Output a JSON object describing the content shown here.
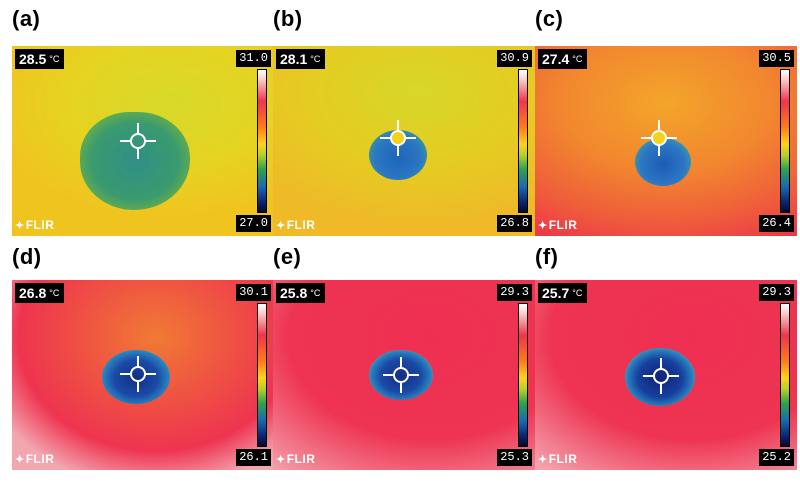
{
  "panels": [
    {
      "label": "(a)",
      "reading": "28.5",
      "unit": "°C",
      "scale_max": "31.0",
      "scale_min": "27.0",
      "logo": "FLIR"
    },
    {
      "label": "(b)",
      "reading": "28.1",
      "unit": "°C",
      "scale_max": "30.9",
      "scale_min": "26.8",
      "logo": "FLIR"
    },
    {
      "label": "(c)",
      "reading": "27.4",
      "unit": "°C",
      "scale_max": "30.5",
      "scale_min": "26.4",
      "logo": "FLIR"
    },
    {
      "label": "(d)",
      "reading": "26.8",
      "unit": "°C",
      "scale_max": "30.1",
      "scale_min": "26.1",
      "logo": "FLIR"
    },
    {
      "label": "(e)",
      "reading": "25.8",
      "unit": "°C",
      "scale_max": "29.3",
      "scale_min": "25.3",
      "logo": "FLIR"
    },
    {
      "label": "(f)",
      "reading": "25.7",
      "unit": "°C",
      "scale_max": "29.3",
      "scale_min": "25.2",
      "logo": "FLIR"
    }
  ],
  "colors": {
    "thermal_yellow": "#e8d021",
    "thermal_orange": "#f29a2a",
    "thermal_red": "#ef2a4f",
    "cold_blue": "#1c5fb0",
    "cold_green": "#2a9a5a"
  },
  "icons": [
    "crosshair-icon",
    "flir-logo-icon"
  ]
}
